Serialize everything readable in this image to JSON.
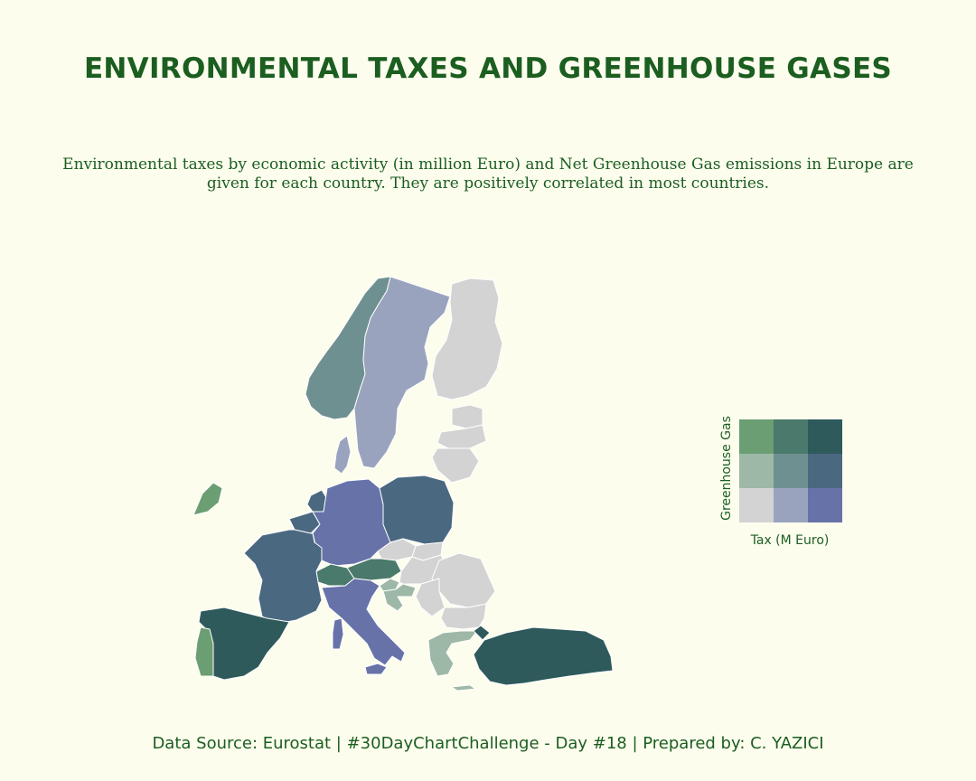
{
  "title": "ENVIRONMENTAL TAXES AND GREENHOUSE GASES",
  "subtitle": "Environmental taxes by economic activity (in million Euro) and Net Greenhouse Gas emissions in Europe are given for each country. They are positively correlated in most countries.",
  "footer": "Data Source: Eurostat | #30DayChartChallenge - Day #18 | Prepared by: C. YAZICI",
  "legend": {
    "y_label": "Greenhouse Gas",
    "x_label": "Tax (M Euro)",
    "rows": [
      [
        "#6b9e72",
        "#4a7a6b",
        "#2e5a5c"
      ],
      [
        "#9db8a6",
        "#6f9090",
        "#4a6880"
      ],
      [
        "#d3d3d3",
        "#9aa3bd",
        "#6672a8"
      ]
    ]
  },
  "colors": {
    "background": "#fdfdee",
    "text": "#1b5e20",
    "border": "#ffffff"
  },
  "regions": [
    {
      "id": "norway",
      "color": "#6f9090"
    },
    {
      "id": "sweden",
      "color": "#9aa3bd"
    },
    {
      "id": "finland",
      "color": "#d3d3d3"
    },
    {
      "id": "estonia",
      "color": "#d3d3d3"
    },
    {
      "id": "latvia",
      "color": "#d3d3d3"
    },
    {
      "id": "lithuania",
      "color": "#d3d3d3"
    },
    {
      "id": "denmark",
      "color": "#9aa3bd"
    },
    {
      "id": "ireland",
      "color": "#6b9e72"
    },
    {
      "id": "netherlands",
      "color": "#4a6880"
    },
    {
      "id": "belgium",
      "color": "#4a6880"
    },
    {
      "id": "luxembourg",
      "color": "#9aa3bd"
    },
    {
      "id": "germany",
      "color": "#6672a8"
    },
    {
      "id": "poland",
      "color": "#4a6880"
    },
    {
      "id": "czechia",
      "color": "#d3d3d3"
    },
    {
      "id": "slovakia",
      "color": "#d3d3d3"
    },
    {
      "id": "austria",
      "color": "#4a7a6b"
    },
    {
      "id": "switzerland",
      "color": "#4a7a6b"
    },
    {
      "id": "france",
      "color": "#4a6880"
    },
    {
      "id": "spain",
      "color": "#2e5a5c"
    },
    {
      "id": "portugal",
      "color": "#6b9e72"
    },
    {
      "id": "italy",
      "color": "#6672a8"
    },
    {
      "id": "sicily",
      "color": "#6672a8"
    },
    {
      "id": "sardinia",
      "color": "#6672a8"
    },
    {
      "id": "slovenia",
      "color": "#9db8a6"
    },
    {
      "id": "croatia",
      "color": "#9db8a6"
    },
    {
      "id": "hungary",
      "color": "#d3d3d3"
    },
    {
      "id": "romania",
      "color": "#d3d3d3"
    },
    {
      "id": "bulgaria",
      "color": "#d3d3d3"
    },
    {
      "id": "serbia",
      "color": "#d3d3d3"
    },
    {
      "id": "greece",
      "color": "#9db8a6"
    },
    {
      "id": "turkey",
      "color": "#2e5a5c"
    },
    {
      "id": "turkey-thrace",
      "color": "#2e5a5c"
    }
  ]
}
